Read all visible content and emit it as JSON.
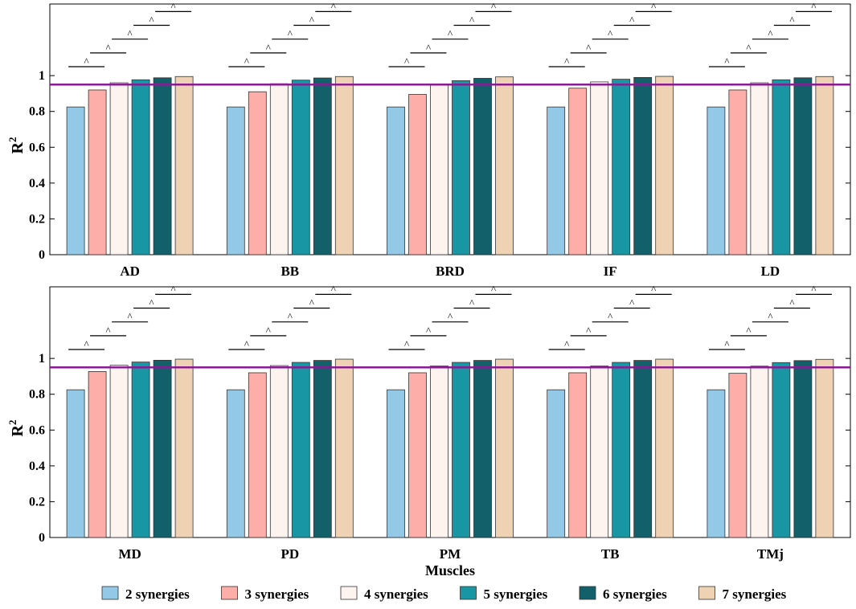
{
  "chart_data": [
    {
      "type": "bar",
      "panel": "top",
      "categories": [
        "AD",
        "BB",
        "BRD",
        "IF",
        "LD"
      ],
      "series": [
        {
          "name": "2 synergies",
          "values": [
            0.825,
            0.825,
            0.825,
            0.825,
            0.825
          ]
        },
        {
          "name": "3 synergies",
          "values": [
            0.92,
            0.91,
            0.895,
            0.93,
            0.92
          ]
        },
        {
          "name": "4 synergies",
          "values": [
            0.96,
            0.955,
            0.95,
            0.965,
            0.96
          ]
        },
        {
          "name": "5 synergies",
          "values": [
            0.977,
            0.975,
            0.972,
            0.98,
            0.977
          ]
        },
        {
          "name": "6 synergies",
          "values": [
            0.988,
            0.987,
            0.985,
            0.99,
            0.988
          ]
        },
        {
          "name": "7 synergies",
          "values": [
            0.995,
            0.995,
            0.993,
            0.996,
            0.995
          ]
        }
      ],
      "threshold": 0.95,
      "significance_marker": "^",
      "ylabel": "R",
      "ylabel_sup": "2",
      "xlabel": "",
      "ylim": [
        0,
        1.4
      ],
      "yticks": [
        "0",
        "0.2",
        "0.4",
        "0.6",
        "0.8",
        "1"
      ]
    },
    {
      "type": "bar",
      "panel": "bottom",
      "categories": [
        "MD",
        "PD",
        "PM",
        "TB",
        "TMj"
      ],
      "series": [
        {
          "name": "2 synergies",
          "values": [
            0.825,
            0.825,
            0.825,
            0.825,
            0.825
          ]
        },
        {
          "name": "3 synergies",
          "values": [
            0.927,
            0.92,
            0.92,
            0.92,
            0.917
          ]
        },
        {
          "name": "4 synergies",
          "values": [
            0.962,
            0.96,
            0.958,
            0.958,
            0.957
          ]
        },
        {
          "name": "5 synergies",
          "values": [
            0.98,
            0.978,
            0.978,
            0.978,
            0.977
          ]
        },
        {
          "name": "6 synergies",
          "values": [
            0.99,
            0.989,
            0.989,
            0.989,
            0.988
          ]
        },
        {
          "name": "7 synergies",
          "values": [
            0.996,
            0.996,
            0.996,
            0.996,
            0.995
          ]
        }
      ],
      "threshold": 0.95,
      "significance_marker": "^",
      "ylabel": "R",
      "ylabel_sup": "2",
      "xlabel": "Muscles",
      "ylim": [
        0,
        1.4
      ],
      "yticks": [
        "0",
        "0.2",
        "0.4",
        "0.6",
        "0.8",
        "1"
      ]
    }
  ],
  "legend": {
    "placement": "bottom",
    "items": [
      {
        "label": "2 synergies",
        "color": "#93c8e6"
      },
      {
        "label": "3 synergies",
        "color": "#fdaea8"
      },
      {
        "label": "4 synergies",
        "color": "#fdf4f0"
      },
      {
        "label": "5 synergies",
        "color": "#1896a4"
      },
      {
        "label": "6 synergies",
        "color": "#11606a"
      },
      {
        "label": "7 synergies",
        "color": "#efd2b4"
      }
    ]
  },
  "colors": {
    "threshold_line": "#8b1a95",
    "axis": "#000000",
    "bar_edge": "#333333"
  }
}
